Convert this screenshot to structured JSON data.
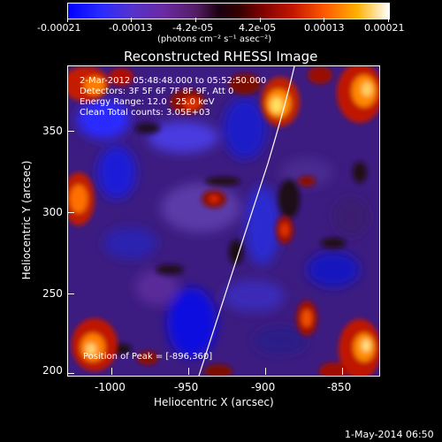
{
  "colorbar": {
    "ticks": [
      "-0.00021",
      "-0.00013",
      "-4.2e-05",
      "4.2e-05",
      "0.00013",
      "0.00021"
    ],
    "unit_label": "(photons cm⁻² s⁻¹ asec⁻²)"
  },
  "plot": {
    "title": "Reconstructed RHESSI Image",
    "info_lines": [
      "2-Mar-2012 05:48:48.000 to 05:52:50.000",
      "Detectors: 3F 5F 6F 7F 8F 9F, Att 0",
      "Energy Range: 12.0 - 25.0 keV",
      "Clean    Total counts: 3.05E+03"
    ],
    "peak_text": "Position of Peak = [-896,360]",
    "x_axis": {
      "label": "Heliocentric X (arcsec)",
      "ticks": [
        "-1000",
        "-950",
        "-900",
        "-850"
      ]
    },
    "y_axis": {
      "label": "Heliocentric Y (arcsec)",
      "ticks": [
        "350",
        "300",
        "250",
        "200"
      ]
    }
  },
  "footer": {
    "timestamp": "1-May-2014 06:50"
  }
}
